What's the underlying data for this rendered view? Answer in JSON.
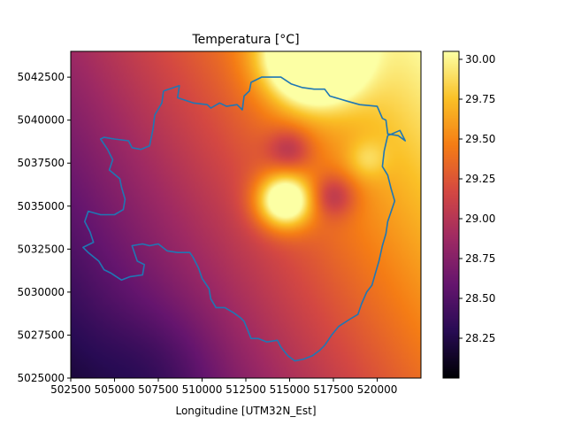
{
  "chart_data": {
    "type": "heatmap",
    "title": "Temperatura [°C]",
    "xlabel": "Longitudine [UTM32N_Est]",
    "ylabel": "",
    "xlim": [
      502500,
      522500
    ],
    "ylim": [
      5025000,
      5044000
    ],
    "x_ticks": [
      {
        "value": 502500,
        "label": "502500"
      },
      {
        "value": 505000,
        "label": "505000"
      },
      {
        "value": 507500,
        "label": "507500"
      },
      {
        "value": 510000,
        "label": "510000"
      },
      {
        "value": 512500,
        "label": "512500"
      },
      {
        "value": 515000,
        "label": "515000"
      },
      {
        "value": 517500,
        "label": "517500"
      },
      {
        "value": 520000,
        "label": "520000"
      }
    ],
    "y_ticks": [
      {
        "value": 5025000,
        "label": "5025000"
      },
      {
        "value": 5027500,
        "label": "5027500"
      },
      {
        "value": 5030000,
        "label": "5030000"
      },
      {
        "value": 5032500,
        "label": "5032500"
      },
      {
        "value": 5035000,
        "label": "5035000"
      },
      {
        "value": 5037500,
        "label": "5037500"
      },
      {
        "value": 5040000,
        "label": "5040000"
      },
      {
        "value": 5042500,
        "label": "5042500"
      }
    ],
    "colorbar": {
      "colormap": "inferno",
      "range": [
        28.0,
        30.05
      ],
      "ticks": [
        {
          "value": 28.25,
          "label": "28.25"
        },
        {
          "value": 28.5,
          "label": "28.50"
        },
        {
          "value": 28.75,
          "label": "28.75"
        },
        {
          "value": 29.0,
          "label": "29.00"
        },
        {
          "value": 29.25,
          "label": "29.25"
        },
        {
          "value": 29.5,
          "label": "29.50"
        },
        {
          "value": 29.75,
          "label": "29.75"
        },
        {
          "value": 30.0,
          "label": "30.00"
        }
      ]
    },
    "field": {
      "base": 28.22,
      "gradient": {
        "per_km_x": 0.058,
        "per_km_y": 0.034
      },
      "bumps": [
        {
          "x": 516300,
          "y": 5043700,
          "amplitude": 1.6,
          "sigma_km": 1.8
        },
        {
          "x": 514700,
          "y": 5035300,
          "amplitude": 1.15,
          "sigma_km": 1.1
        },
        {
          "x": 519400,
          "y": 5037700,
          "amplitude": 0.25,
          "sigma_km": 0.8
        },
        {
          "x": 515000,
          "y": 5038300,
          "amplitude": -0.38,
          "sigma_km": 0.9
        },
        {
          "x": 517500,
          "y": 5035600,
          "amplitude": -0.42,
          "sigma_km": 0.9
        },
        {
          "x": 507500,
          "y": 5025500,
          "amplitude": -0.15,
          "sigma_km": 2.5
        }
      ]
    },
    "boundary": {
      "color": "#1f77b4",
      "points": [
        [
          507800,
          5041700
        ],
        [
          508700,
          5042000
        ],
        [
          508600,
          5041300
        ],
        [
          509500,
          5041000
        ],
        [
          510300,
          5040900
        ],
        [
          510500,
          5040700
        ],
        [
          511000,
          5041000
        ],
        [
          511400,
          5040800
        ],
        [
          512000,
          5040900
        ],
        [
          512300,
          5040600
        ],
        [
          512400,
          5041400
        ],
        [
          512700,
          5041700
        ],
        [
          512800,
          5042200
        ],
        [
          513400,
          5042500
        ],
        [
          514500,
          5042500
        ],
        [
          515100,
          5042100
        ],
        [
          515700,
          5041900
        ],
        [
          516400,
          5041800
        ],
        [
          517000,
          5041800
        ],
        [
          517300,
          5041400
        ],
        [
          518300,
          5041100
        ],
        [
          519000,
          5040900
        ],
        [
          520000,
          5040800
        ],
        [
          520300,
          5040100
        ],
        [
          520500,
          5040000
        ],
        [
          520600,
          5039200
        ],
        [
          521200,
          5039100
        ],
        [
          521600,
          5038800
        ],
        [
          521300,
          5039400
        ],
        [
          520600,
          5039100
        ],
        [
          520400,
          5038200
        ],
        [
          520300,
          5037300
        ],
        [
          520600,
          5036800
        ],
        [
          520800,
          5036000
        ],
        [
          521000,
          5035300
        ],
        [
          520600,
          5034100
        ],
        [
          520500,
          5033400
        ],
        [
          520300,
          5032700
        ],
        [
          520100,
          5031800
        ],
        [
          519900,
          5031100
        ],
        [
          519700,
          5030400
        ],
        [
          519400,
          5030000
        ],
        [
          519100,
          5029300
        ],
        [
          518900,
          5028700
        ],
        [
          518400,
          5028400
        ],
        [
          517800,
          5028000
        ],
        [
          517400,
          5027500
        ],
        [
          517000,
          5026900
        ],
        [
          516700,
          5026600
        ],
        [
          516300,
          5026300
        ],
        [
          515800,
          5026100
        ],
        [
          515300,
          5026000
        ],
        [
          514900,
          5026300
        ],
        [
          514500,
          5026800
        ],
        [
          514300,
          5027200
        ],
        [
          513700,
          5027100
        ],
        [
          513200,
          5027300
        ],
        [
          512800,
          5027300
        ],
        [
          512600,
          5027800
        ],
        [
          512400,
          5028300
        ],
        [
          512200,
          5028500
        ],
        [
          511800,
          5028800
        ],
        [
          511300,
          5029100
        ],
        [
          510800,
          5029100
        ],
        [
          510500,
          5029600
        ],
        [
          510400,
          5030200
        ],
        [
          510000,
          5030800
        ],
        [
          509800,
          5031400
        ],
        [
          509500,
          5032000
        ],
        [
          509300,
          5032300
        ],
        [
          508600,
          5032300
        ],
        [
          508000,
          5032400
        ],
        [
          507500,
          5032800
        ],
        [
          507000,
          5032700
        ],
        [
          506600,
          5032800
        ],
        [
          506000,
          5032700
        ],
        [
          506300,
          5031800
        ],
        [
          506700,
          5031600
        ],
        [
          506600,
          5031000
        ],
        [
          505900,
          5030900
        ],
        [
          505400,
          5030700
        ],
        [
          504800,
          5031100
        ],
        [
          504400,
          5031300
        ],
        [
          504100,
          5031800
        ],
        [
          503500,
          5032300
        ],
        [
          503200,
          5032600
        ],
        [
          503800,
          5032900
        ],
        [
          503600,
          5033500
        ],
        [
          503300,
          5034100
        ],
        [
          503500,
          5034700
        ],
        [
          504200,
          5034500
        ],
        [
          505000,
          5034500
        ],
        [
          505500,
          5034800
        ],
        [
          505600,
          5035400
        ],
        [
          505400,
          5036100
        ],
        [
          505300,
          5036600
        ],
        [
          504700,
          5037100
        ],
        [
          504900,
          5037700
        ],
        [
          504600,
          5038300
        ],
        [
          504200,
          5038900
        ],
        [
          504400,
          5039000
        ],
        [
          505000,
          5038900
        ],
        [
          505800,
          5038800
        ],
        [
          506000,
          5038400
        ],
        [
          506500,
          5038300
        ],
        [
          507000,
          5038500
        ],
        [
          507200,
          5039500
        ],
        [
          507300,
          5040300
        ],
        [
          507700,
          5041000
        ],
        [
          507800,
          5041700
        ]
      ]
    }
  }
}
